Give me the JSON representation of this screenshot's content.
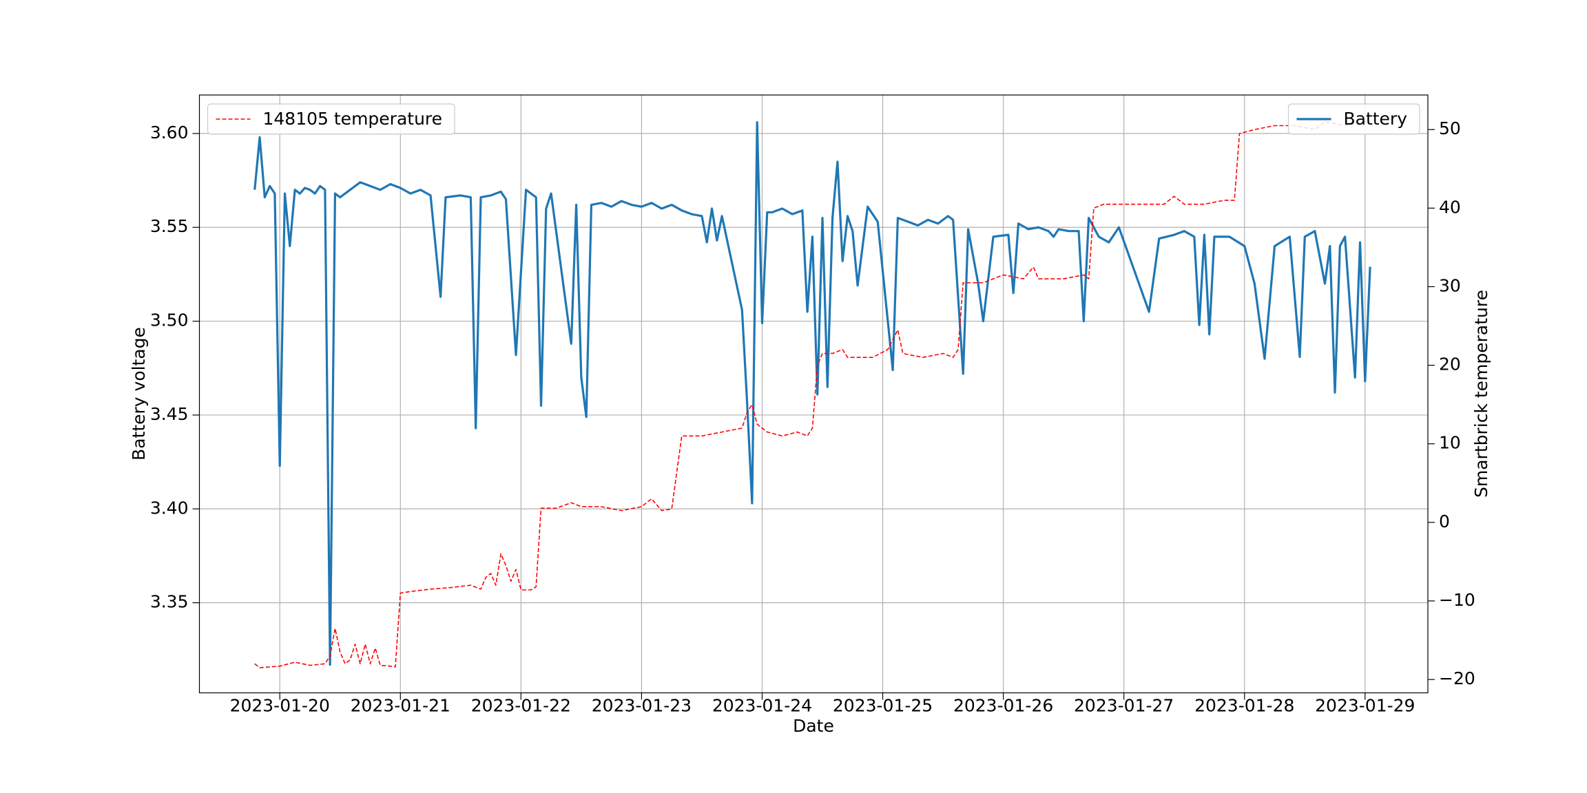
{
  "chart_data": {
    "type": "line",
    "xlabel": "Date",
    "ylabel": "Battery voltage",
    "y2label": "Smartbrick temperature",
    "grid": true,
    "xlim": [
      "2023-01-19T08:00",
      "2023-01-29T12:30"
    ],
    "xticks": [
      "2023-01-20",
      "2023-01-21",
      "2023-01-22",
      "2023-01-23",
      "2023-01-24",
      "2023-01-25",
      "2023-01-26",
      "2023-01-27",
      "2023-01-28",
      "2023-01-29"
    ],
    "ylim": [
      3.302,
      3.6205
    ],
    "yticks": [
      {
        "value": 3.35,
        "label": "3.35"
      },
      {
        "value": 3.4,
        "label": "3.40"
      },
      {
        "value": 3.45,
        "label": "3.45"
      },
      {
        "value": 3.5,
        "label": "3.50"
      },
      {
        "value": 3.55,
        "label": "3.55"
      },
      {
        "value": 3.6,
        "label": "3.60"
      }
    ],
    "y2lim": [
      -21.7,
      54.4
    ],
    "y2ticks": [
      {
        "value": -20,
        "label": "−20"
      },
      {
        "value": -10,
        "label": "−10"
      },
      0,
      10,
      20,
      30,
      40,
      50
    ],
    "series": [
      {
        "name": "Battery",
        "color": "#1f77b4",
        "style": "solid",
        "axis": "y",
        "legend": "upper right",
        "x": [
          "2023-01-19T19:00",
          "2023-01-19T20:00",
          "2023-01-19T21:00",
          "2023-01-19T22:00",
          "2023-01-19T23:00",
          "2023-01-20T00:00",
          "2023-01-20T01:00",
          "2023-01-20T02:00",
          "2023-01-20T03:00",
          "2023-01-20T04:00",
          "2023-01-20T05:00",
          "2023-01-20T06:00",
          "2023-01-20T07:00",
          "2023-01-20T08:00",
          "2023-01-20T09:00",
          "2023-01-20T10:00",
          "2023-01-20T11:00",
          "2023-01-20T12:00",
          "2023-01-20T14:00",
          "2023-01-20T16:00",
          "2023-01-20T18:00",
          "2023-01-20T20:00",
          "2023-01-20T22:00",
          "2023-01-21T00:00",
          "2023-01-21T02:00",
          "2023-01-21T04:00",
          "2023-01-21T06:00",
          "2023-01-21T08:00",
          "2023-01-21T09:00",
          "2023-01-21T12:00",
          "2023-01-21T14:00",
          "2023-01-21T15:00",
          "2023-01-21T16:00",
          "2023-01-21T18:00",
          "2023-01-21T20:00",
          "2023-01-21T21:00",
          "2023-01-21T23:00",
          "2023-01-22T01:00",
          "2023-01-22T03:00",
          "2023-01-22T04:00",
          "2023-01-22T05:00",
          "2023-01-22T06:00",
          "2023-01-22T10:00",
          "2023-01-22T11:00",
          "2023-01-22T12:00",
          "2023-01-22T13:00",
          "2023-01-22T14:00",
          "2023-01-22T16:00",
          "2023-01-22T18:00",
          "2023-01-22T20:00",
          "2023-01-22T22:00",
          "2023-01-23T00:00",
          "2023-01-23T02:00",
          "2023-01-23T04:00",
          "2023-01-23T06:00",
          "2023-01-23T08:00",
          "2023-01-23T10:00",
          "2023-01-23T12:00",
          "2023-01-23T13:00",
          "2023-01-23T14:00",
          "2023-01-23T15:00",
          "2023-01-23T16:00",
          "2023-01-23T20:00",
          "2023-01-23T21:00",
          "2023-01-23T22:00",
          "2023-01-23T23:00",
          "2023-01-24T00:00",
          "2023-01-24T01:00",
          "2023-01-24T02:00",
          "2023-01-24T04:00",
          "2023-01-24T06:00",
          "2023-01-24T08:00",
          "2023-01-24T09:00",
          "2023-01-24T10:00",
          "2023-01-24T11:00",
          "2023-01-24T12:00",
          "2023-01-24T13:00",
          "2023-01-24T14:00",
          "2023-01-24T15:00",
          "2023-01-24T16:00",
          "2023-01-24T17:00",
          "2023-01-24T18:00",
          "2023-01-24T19:00",
          "2023-01-24T21:00",
          "2023-01-24T23:00",
          "2023-01-25T02:00",
          "2023-01-25T03:00",
          "2023-01-25T05:00",
          "2023-01-25T07:00",
          "2023-01-25T09:00",
          "2023-01-25T11:00",
          "2023-01-25T13:00",
          "2023-01-25T14:00",
          "2023-01-25T16:00",
          "2023-01-25T17:00",
          "2023-01-25T19:00",
          "2023-01-25T20:00",
          "2023-01-25T22:00",
          "2023-01-26T01:00",
          "2023-01-26T02:00",
          "2023-01-26T03:00",
          "2023-01-26T05:00",
          "2023-01-26T07:00",
          "2023-01-26T09:00",
          "2023-01-26T10:00",
          "2023-01-26T11:00",
          "2023-01-26T13:00",
          "2023-01-26T15:00",
          "2023-01-26T16:00",
          "2023-01-26T17:00",
          "2023-01-26T19:00",
          "2023-01-26T21:00",
          "2023-01-26T23:00",
          "2023-01-27T05:00",
          "2023-01-27T07:00",
          "2023-01-27T10:00",
          "2023-01-27T12:00",
          "2023-01-27T14:00",
          "2023-01-27T15:00",
          "2023-01-27T16:00",
          "2023-01-27T17:00",
          "2023-01-27T18:00",
          "2023-01-27T21:00",
          "2023-01-28T00:00",
          "2023-01-28T02:00",
          "2023-01-28T04:00",
          "2023-01-28T06:00",
          "2023-01-28T09:00",
          "2023-01-28T11:00",
          "2023-01-28T12:00",
          "2023-01-28T14:00",
          "2023-01-28T16:00",
          "2023-01-28T17:00",
          "2023-01-28T18:00",
          "2023-01-28T19:00",
          "2023-01-28T20:00",
          "2023-01-28T22:00",
          "2023-01-28T23:00",
          "2023-01-29T00:00",
          "2023-01-29T01:00"
        ],
        "values": [
          3.57,
          3.598,
          3.566,
          3.572,
          3.568,
          3.423,
          3.568,
          3.54,
          3.57,
          3.568,
          3.571,
          3.57,
          3.568,
          3.572,
          3.57,
          3.317,
          3.568,
          3.566,
          3.57,
          3.574,
          3.572,
          3.57,
          3.573,
          3.571,
          3.568,
          3.57,
          3.567,
          3.513,
          3.566,
          3.567,
          3.566,
          3.443,
          3.566,
          3.567,
          3.569,
          3.565,
          3.482,
          3.57,
          3.566,
          3.455,
          3.56,
          3.568,
          3.488,
          3.562,
          3.47,
          3.449,
          3.562,
          3.563,
          3.561,
          3.564,
          3.562,
          3.561,
          3.563,
          3.56,
          3.562,
          3.559,
          3.557,
          3.556,
          3.542,
          3.56,
          3.543,
          3.556,
          3.506,
          3.457,
          3.403,
          3.606,
          3.499,
          3.558,
          3.558,
          3.56,
          3.557,
          3.559,
          3.505,
          3.545,
          3.461,
          3.555,
          3.465,
          3.555,
          3.585,
          3.532,
          3.556,
          3.548,
          3.519,
          3.561,
          3.553,
          3.474,
          3.555,
          3.553,
          3.551,
          3.554,
          3.552,
          3.556,
          3.554,
          3.472,
          3.549,
          3.52,
          3.5,
          3.545,
          3.546,
          3.515,
          3.552,
          3.549,
          3.55,
          3.548,
          3.545,
          3.549,
          3.548,
          3.548,
          3.5,
          3.555,
          3.545,
          3.542,
          3.55,
          3.505,
          3.544,
          3.546,
          3.548,
          3.545,
          3.498,
          3.546,
          3.493,
          3.545,
          3.545,
          3.54,
          3.52,
          3.48,
          3.54,
          3.545,
          3.481,
          3.545,
          3.548,
          3.52,
          3.54,
          3.462,
          3.54,
          3.545,
          3.47,
          3.542,
          3.468,
          3.529
        ]
      },
      {
        "name": "148105 temperature",
        "color": "#ff0000",
        "style": "dashed",
        "axis": "y2",
        "legend": "upper left",
        "x": [
          "2023-01-19T19:00",
          "2023-01-19T20:00",
          "2023-01-20T00:00",
          "2023-01-20T03:00",
          "2023-01-20T06:00",
          "2023-01-20T09:00",
          "2023-01-20T10:00",
          "2023-01-20T11:00",
          "2023-01-20T12:00",
          "2023-01-20T13:00",
          "2023-01-20T14:00",
          "2023-01-20T15:00",
          "2023-01-20T16:00",
          "2023-01-20T17:00",
          "2023-01-20T18:00",
          "2023-01-20T19:00",
          "2023-01-20T20:00",
          "2023-01-20T22:00",
          "2023-01-20T23:00",
          "2023-01-21T00:00",
          "2023-01-21T02:00",
          "2023-01-21T06:00",
          "2023-01-21T10:00",
          "2023-01-21T14:00",
          "2023-01-21T16:00",
          "2023-01-21T17:00",
          "2023-01-21T18:00",
          "2023-01-21T19:00",
          "2023-01-21T20:00",
          "2023-01-21T21:00",
          "2023-01-21T22:00",
          "2023-01-21T23:00",
          "2023-01-22T00:00",
          "2023-01-22T02:00",
          "2023-01-22T03:00",
          "2023-01-22T04:00",
          "2023-01-22T07:00",
          "2023-01-22T10:00",
          "2023-01-22T12:00",
          "2023-01-22T16:00",
          "2023-01-22T20:00",
          "2023-01-23T00:00",
          "2023-01-23T02:00",
          "2023-01-23T04:00",
          "2023-01-23T06:00",
          "2023-01-23T08:00",
          "2023-01-23T12:00",
          "2023-01-23T16:00",
          "2023-01-23T20:00",
          "2023-01-23T21:00",
          "2023-01-23T22:00",
          "2023-01-23T23:00",
          "2023-01-24T01:00",
          "2023-01-24T04:00",
          "2023-01-24T07:00",
          "2023-01-24T09:00",
          "2023-01-24T10:00",
          "2023-01-24T11:00",
          "2023-01-24T12:00",
          "2023-01-24T14:00",
          "2023-01-24T16:00",
          "2023-01-24T17:00",
          "2023-01-24T22:00",
          "2023-01-25T01:00",
          "2023-01-25T03:00",
          "2023-01-25T04:00",
          "2023-01-25T08:00",
          "2023-01-25T12:00",
          "2023-01-25T14:00",
          "2023-01-25T15:00",
          "2023-01-25T16:00",
          "2023-01-25T20:00",
          "2023-01-26T00:00",
          "2023-01-26T04:00",
          "2023-01-26T06:00",
          "2023-01-26T07:00",
          "2023-01-26T12:00",
          "2023-01-26T16:00",
          "2023-01-26T17:00",
          "2023-01-26T18:00",
          "2023-01-26T20:00",
          "2023-01-27T00:00",
          "2023-01-27T04:00",
          "2023-01-27T08:00",
          "2023-01-27T10:00",
          "2023-01-27T12:00",
          "2023-01-27T16:00",
          "2023-01-27T20:00",
          "2023-01-27T22:00",
          "2023-01-27T23:00",
          "2023-01-28T02:00",
          "2023-01-28T06:00",
          "2023-01-28T10:00",
          "2023-01-28T14:00",
          "2023-01-28T16:00",
          "2023-01-28T20:00",
          "2023-01-29T00:00",
          "2023-01-29T01:00"
        ],
        "values": [
          -18,
          -18.5,
          -18.3,
          -17.8,
          -18.2,
          -18,
          -17,
          -13.5,
          -16.5,
          -18,
          -17.5,
          -15.5,
          -18,
          -15.5,
          -18,
          -16,
          -18.2,
          -18.3,
          -18.4,
          -9,
          -8.8,
          -8.5,
          -8.3,
          -8,
          -8.5,
          -7,
          -6.5,
          -8,
          -4,
          -5.5,
          -7.5,
          -6,
          -8.6,
          -8.6,
          -8.2,
          1.8,
          1.8,
          2.5,
          2,
          2,
          1.5,
          2,
          3,
          1.5,
          1.7,
          11,
          11,
          11.5,
          12,
          14,
          15,
          12.5,
          11.5,
          11,
          11.5,
          11,
          12,
          20,
          21.5,
          21.5,
          22,
          21,
          21,
          22,
          24.5,
          21.5,
          21,
          21.5,
          21,
          22,
          30.5,
          30.5,
          31.5,
          31,
          32.5,
          31,
          31,
          31.5,
          31,
          40,
          40.5,
          40.5,
          40.5,
          40.5,
          41.5,
          40.5,
          40.5,
          41,
          41,
          49.5,
          50,
          50.5,
          50.5,
          50,
          51,
          50.5,
          51,
          51
        ]
      }
    ]
  }
}
